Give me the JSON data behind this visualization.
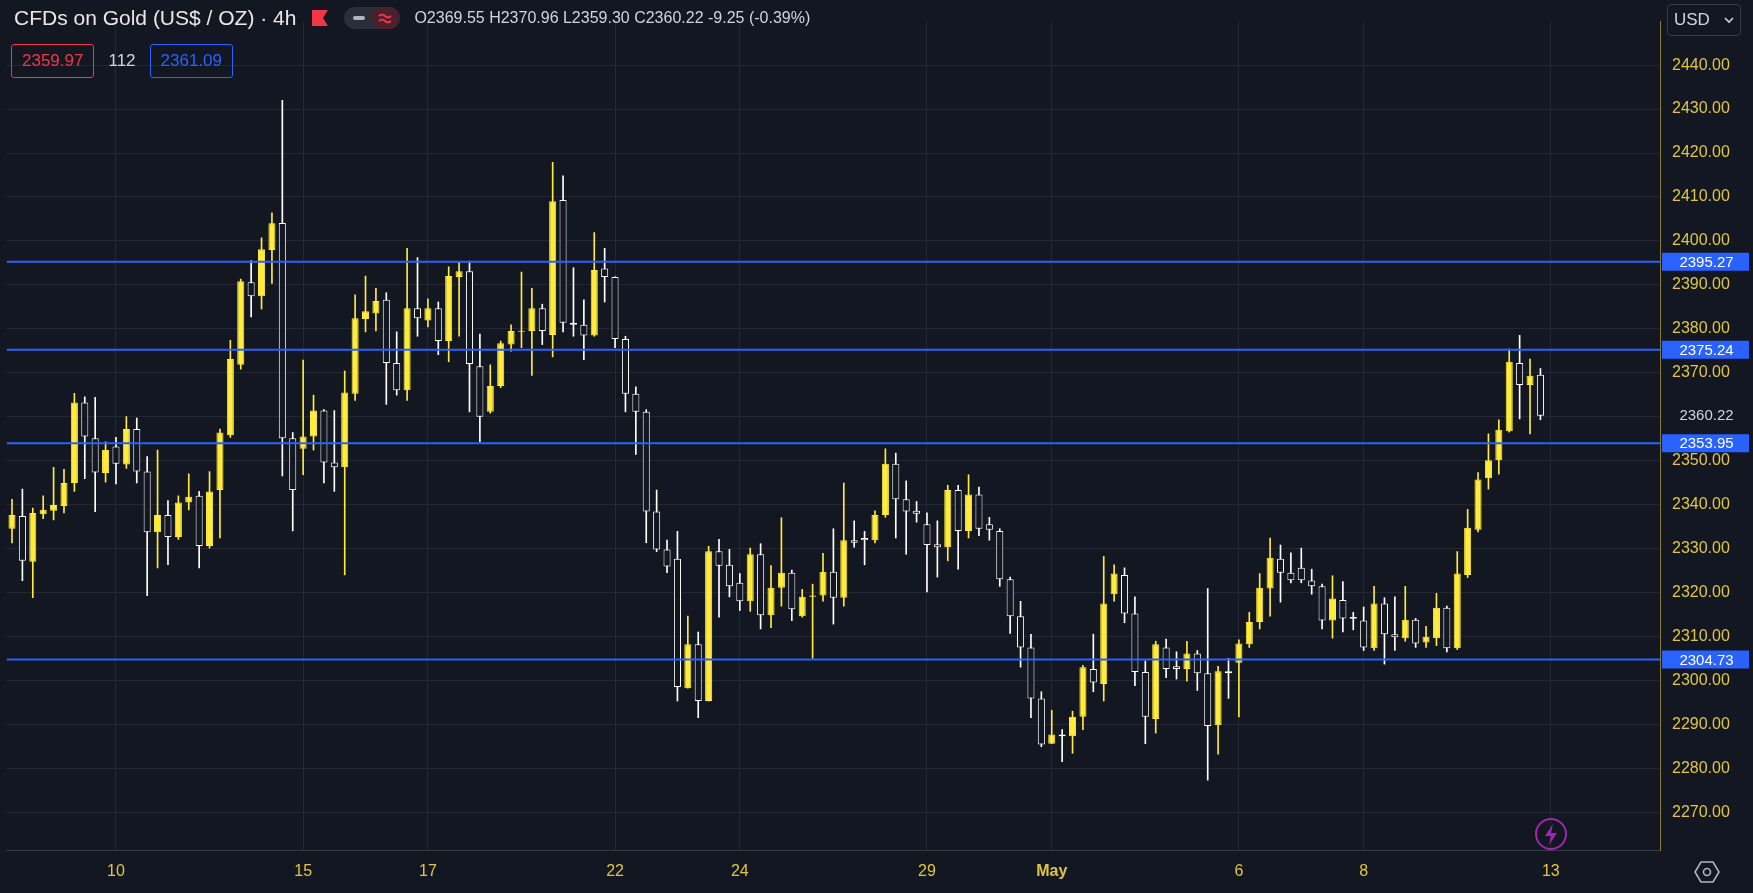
{
  "chart_data": {
    "type": "candlestick",
    "title": "CFDs on Gold (US$ / OZ) · 4h",
    "subtitle": "O2369.55 H2370.96 L2359.30 C2360.22 -9.25 (-0.39%)",
    "categories": [
      null,
      null,
      null,
      null,
      null,
      null,
      null,
      null,
      null,
      null,
      "10",
      null,
      null,
      null,
      null,
      null,
      null,
      null,
      null,
      null,
      null,
      null,
      null,
      null,
      null,
      null,
      null,
      null,
      "15",
      null,
      null,
      null,
      null,
      null,
      null,
      null,
      null,
      null,
      null,
      null,
      "17",
      null,
      null,
      null,
      null,
      null,
      null,
      null,
      null,
      null,
      null,
      null,
      null,
      null,
      null,
      null,
      null,
      null,
      "22",
      null,
      null,
      null,
      null,
      null,
      null,
      null,
      null,
      null,
      null,
      null,
      "24",
      null,
      null,
      null,
      null,
      null,
      null,
      null,
      null,
      null,
      null,
      null,
      null,
      null,
      null,
      null,
      null,
      null,
      "29",
      null,
      null,
      null,
      null,
      null,
      null,
      null,
      null,
      null,
      null,
      null,
      "May",
      null,
      null,
      null,
      null,
      null,
      null,
      null,
      null,
      null,
      null,
      null,
      null,
      null,
      null,
      null,
      null,
      null,
      "6",
      null,
      null,
      null,
      null,
      null,
      null,
      null,
      null,
      null,
      null,
      null,
      "8",
      null,
      null,
      null,
      null,
      null,
      null,
      null,
      null,
      null,
      null,
      null,
      null,
      null,
      null,
      null,
      null,
      null,
      "13",
      null,
      null,
      null,
      null,
      null,
      null,
      null,
      null,
      null,
      null
    ],
    "ohlc": [
      [
        2334.5,
        2341.2,
        2331.3,
        2337.6
      ],
      [
        2337.4,
        2343.5,
        2322.7,
        2327.2
      ],
      [
        2327.0,
        2339.2,
        2318.8,
        2338.1
      ],
      [
        2337.8,
        2342.0,
        2336.8,
        2338.8
      ],
      [
        2338.6,
        2348.5,
        2336.5,
        2339.9
      ],
      [
        2339.7,
        2348.0,
        2338.1,
        2344.9
      ],
      [
        2344.9,
        2365.3,
        2343.0,
        2363.2
      ],
      [
        2363.2,
        2364.5,
        2345.9,
        2355.5
      ],
      [
        2355.1,
        2364.4,
        2338.4,
        2347.3
      ],
      [
        2347.2,
        2354.3,
        2345.1,
        2352.4
      ],
      [
        2353.2,
        2355.3,
        2344.7,
        2349.3
      ],
      [
        2349.1,
        2360.0,
        2348.2,
        2357.2
      ],
      [
        2357.2,
        2359.7,
        2344.9,
        2347.5
      ],
      [
        2347.5,
        2350.9,
        2319.3,
        2333.7
      ],
      [
        2333.7,
        2352.4,
        2325.6,
        2337.6
      ],
      [
        2337.6,
        2340.9,
        2326.3,
        2332.6
      ],
      [
        2332.6,
        2342.0,
        2332.1,
        2340.5
      ],
      [
        2340.5,
        2347.0,
        2338.8,
        2341.8
      ],
      [
        2342.0,
        2343.0,
        2325.6,
        2330.6
      ],
      [
        2330.6,
        2347.5,
        2330.1,
        2343.0
      ],
      [
        2343.3,
        2357.2,
        2332.4,
        2356.4
      ],
      [
        2355.8,
        2377.4,
        2355.3,
        2373.1
      ],
      [
        2371.8,
        2391.3,
        2370.8,
        2390.8
      ],
      [
        2390.6,
        2395.5,
        2382.7,
        2387.4
      ],
      [
        2387.4,
        2400.7,
        2384.5,
        2398.1
      ],
      [
        2397.9,
        2406.4,
        2390.3,
        2404.0
      ],
      [
        2404.1,
        2432.0,
        2346.5,
        2355.1
      ],
      [
        2355.1,
        2356.4,
        2334.0,
        2343.3
      ],
      [
        2352.7,
        2372.9,
        2346.8,
        2355.5
      ],
      [
        2355.5,
        2364.9,
        2352.4,
        2361.4
      ],
      [
        2361.4,
        2361.6,
        2344.9,
        2349.6
      ],
      [
        2349.6,
        2361.4,
        2343.0,
        2348.5
      ],
      [
        2348.5,
        2370.4,
        2324.0,
        2365.5
      ],
      [
        2365.2,
        2387.7,
        2363.7,
        2382.4
      ],
      [
        2382.2,
        2392.0,
        2379.3,
        2384.0
      ],
      [
        2383.5,
        2389.2,
        2379.5,
        2386.3
      ],
      [
        2386.6,
        2388.2,
        2362.8,
        2372.2
      ],
      [
        2372.2,
        2379.3,
        2364.9,
        2366.0
      ],
      [
        2366.0,
        2398.3,
        2363.7,
        2384.7
      ],
      [
        2384.7,
        2396.2,
        2378.3,
        2382.4
      ],
      [
        2381.9,
        2386.8,
        2380.4,
        2384.7
      ],
      [
        2384.7,
        2386.1,
        2374.1,
        2377.2
      ],
      [
        2377.2,
        2394.1,
        2372.5,
        2392.0
      ],
      [
        2391.8,
        2395.2,
        2378.3,
        2393.1
      ],
      [
        2393.1,
        2395.4,
        2361.1,
        2372.0
      ],
      [
        2371.5,
        2378.8,
        2354.3,
        2360.0
      ],
      [
        2361.1,
        2371.8,
        2360.8,
        2367.0
      ],
      [
        2367.0,
        2377.2,
        2366.6,
        2376.7
      ],
      [
        2376.4,
        2380.9,
        2374.9,
        2379.5
      ],
      [
        2379.3,
        2392.9,
        2375.7,
        2379.5
      ],
      [
        2379.5,
        2389.2,
        2369.4,
        2384.7
      ],
      [
        2384.7,
        2385.6,
        2376.4,
        2379.5
      ],
      [
        2378.6,
        2417.9,
        2373.6,
        2409.0
      ],
      [
        2409.3,
        2414.8,
        2379.3,
        2381.4
      ],
      [
        2381.4,
        2393.9,
        2378.3,
        2380.9
      ],
      [
        2380.9,
        2386.6,
        2373.0,
        2378.5
      ],
      [
        2378.5,
        2401.9,
        2378.3,
        2393.4
      ],
      [
        2393.7,
        2398.3,
        2386.1,
        2391.8
      ],
      [
        2391.8,
        2391.8,
        2375.7,
        2377.7
      ],
      [
        2377.7,
        2378.3,
        2361.1,
        2365.2
      ],
      [
        2365.2,
        2366.8,
        2351.4,
        2361.1
      ],
      [
        2361.1,
        2361.6,
        2331.3,
        2338.4
      ],
      [
        2338.4,
        2343.3,
        2329.3,
        2329.8
      ],
      [
        2329.8,
        2331.9,
        2324.5,
        2325.9
      ],
      [
        2327.7,
        2333.9,
        2295.3,
        2298.5
      ],
      [
        2298.2,
        2314.6,
        2298.2,
        2308.2
      ],
      [
        2308.2,
        2311.0,
        2291.5,
        2295.3
      ],
      [
        2295.3,
        2330.5,
        2295.3,
        2329.4
      ],
      [
        2329.4,
        2332.1,
        2314.4,
        2326.1
      ],
      [
        2326.3,
        2329.8,
        2319.0,
        2321.4
      ],
      [
        2322.2,
        2324.3,
        2315.9,
        2318.0
      ],
      [
        2318.0,
        2330.1,
        2315.7,
        2328.7
      ],
      [
        2328.7,
        2331.1,
        2311.7,
        2314.8
      ],
      [
        2314.8,
        2326.1,
        2312.0,
        2321.1
      ],
      [
        2321.1,
        2337.0,
        2316.9,
        2324.5
      ],
      [
        2324.5,
        2325.1,
        2313.6,
        2316.2
      ],
      [
        2314.6,
        2320.7,
        2314.4,
        2319.0
      ],
      [
        2319.0,
        2321.9,
        2305.0,
        2319.3
      ],
      [
        2319.3,
        2328.9,
        2318.0,
        2324.7
      ],
      [
        2324.7,
        2334.5,
        2312.8,
        2318.8
      ],
      [
        2318.8,
        2344.9,
        2316.9,
        2331.9
      ],
      [
        2331.9,
        2336.3,
        2330.3,
        2331.3
      ],
      [
        2332.4,
        2333.9,
        2326.3,
        2331.9
      ],
      [
        2331.9,
        2338.6,
        2331.3,
        2337.6
      ],
      [
        2337.6,
        2352.7,
        2337.1,
        2349.3
      ],
      [
        2349.3,
        2351.7,
        2332.4,
        2341.2
      ],
      [
        2341.2,
        2345.4,
        2328.7,
        2338.4
      ],
      [
        2338.6,
        2340.7,
        2336.0,
        2337.9
      ],
      [
        2335.5,
        2338.1,
        2320.1,
        2330.8
      ],
      [
        2331.0,
        2336.3,
        2323.5,
        2330.3
      ],
      [
        2330.3,
        2344.4,
        2327.2,
        2343.3
      ],
      [
        2343.3,
        2344.4,
        2325.3,
        2334.0
      ],
      [
        2334.0,
        2346.8,
        2332.4,
        2342.3
      ],
      [
        2342.3,
        2344.0,
        2332.9,
        2334.5
      ],
      [
        2335.5,
        2337.1,
        2331.9,
        2334.3
      ],
      [
        2334.0,
        2334.5,
        2321.4,
        2323.0
      ],
      [
        2323.0,
        2323.5,
        2310.7,
        2314.6
      ],
      [
        2314.6,
        2318.0,
        2303.0,
        2307.5
      ],
      [
        2307.5,
        2310.5,
        2291.5,
        2295.9
      ],
      [
        2295.9,
        2297.4,
        2284.9,
        2285.4
      ],
      [
        2285.6,
        2293.2,
        2285.6,
        2287.7
      ],
      [
        2287.7,
        2288.8,
        2281.5,
        2287.3
      ],
      [
        2287.3,
        2293.0,
        2283.4,
        2291.7
      ],
      [
        2291.7,
        2303.4,
        2288.8,
        2303.0
      ],
      [
        2302.6,
        2310.5,
        2297.4,
        2299.5
      ],
      [
        2299.2,
        2328.2,
        2295.3,
        2317.5
      ],
      [
        2319.6,
        2326.3,
        2318.0,
        2324.3
      ],
      [
        2324.0,
        2325.6,
        2313.1,
        2315.2
      ],
      [
        2315.2,
        2319.0,
        2298.8,
        2301.9
      ],
      [
        2301.9,
        2304.4,
        2285.6,
        2291.7
      ],
      [
        2291.2,
        2308.9,
        2288.0,
        2308.2
      ],
      [
        2307.5,
        2309.4,
        2300.6,
        2302.6
      ],
      [
        2303.2,
        2306.5,
        2300.3,
        2302.6
      ],
      [
        2302.6,
        2308.9,
        2299.8,
        2306.1
      ],
      [
        2306.1,
        2306.8,
        2297.7,
        2301.6
      ],
      [
        2301.6,
        2320.9,
        2277.3,
        2289.6
      ],
      [
        2289.8,
        2303.2,
        2283.2,
        2302.1
      ],
      [
        2302.1,
        2305.0,
        2295.9,
        2301.6
      ],
      [
        2304.0,
        2309.2,
        2291.7,
        2308.4
      ],
      [
        2308.2,
        2315.5,
        2307.5,
        2313.3
      ],
      [
        2313.3,
        2324.3,
        2311.7,
        2321.1
      ],
      [
        2320.9,
        2332.4,
        2314.6,
        2327.9
      ],
      [
        2327.7,
        2330.8,
        2317.8,
        2324.5
      ],
      [
        2324.5,
        2329.0,
        2322.2,
        2322.8
      ],
      [
        2325.6,
        2330.1,
        2322.2,
        2322.8
      ],
      [
        2322.7,
        2325.3,
        2319.6,
        2321.4
      ],
      [
        2321.4,
        2321.9,
        2311.7,
        2313.6
      ],
      [
        2313.6,
        2323.8,
        2309.6,
        2318.6
      ],
      [
        2318.3,
        2322.5,
        2311.0,
        2314.1
      ],
      [
        2314.4,
        2315.5,
        2311.5,
        2314.0
      ],
      [
        2313.6,
        2316.7,
        2306.8,
        2307.5
      ],
      [
        2307.3,
        2321.4,
        2306.8,
        2317.5
      ],
      [
        2317.5,
        2318.8,
        2303.7,
        2310.5
      ],
      [
        2310.5,
        2319.0,
        2306.8,
        2309.8
      ],
      [
        2309.6,
        2321.4,
        2308.9,
        2313.8
      ],
      [
        2313.8,
        2314.1,
        2307.5,
        2308.4
      ],
      [
        2308.6,
        2312.3,
        2307.5,
        2309.9
      ],
      [
        2309.6,
        2319.8,
        2307.9,
        2316.5
      ],
      [
        2316.5,
        2316.9,
        2306.5,
        2307.3
      ],
      [
        2307.3,
        2329.3,
        2307.0,
        2324.3
      ],
      [
        2324.0,
        2338.9,
        2323.4,
        2334.7
      ],
      [
        2334.3,
        2347.3,
        2333.8,
        2345.7
      ],
      [
        2346.0,
        2356.1,
        2343.5,
        2350.1
      ],
      [
        2350.1,
        2359.3,
        2346.9,
        2357.0
      ],
      [
        2356.7,
        2375.4,
        2356.5,
        2372.5
      ],
      [
        2372.2,
        2378.5,
        2359.5,
        2367.2
      ],
      [
        2367.2,
        2373.1,
        2356.1,
        2369.3
      ],
      [
        2369.55,
        2370.96,
        2359.3,
        2360.22
      ],
      null,
      null,
      null,
      null,
      null,
      null,
      null,
      null,
      null,
      null,
      null
    ],
    "colors": [
      "#ffeb3b",
      "#ffffff",
      "#ffeb3b",
      "#ffeb3b",
      "#ffeb3b",
      "#ffeb3b",
      "#ffeb3b",
      "#ffffff",
      "#ffffff",
      "#ffeb3b",
      "#ffffff",
      "#ffeb3b",
      "#ffffff",
      "#ffffff",
      "#ffeb3b",
      "#ffffff",
      "#ffeb3b",
      "#ffeb3b",
      "#ffffff",
      "#ffeb3b",
      "#ffeb3b",
      "#ffeb3b",
      "#ffeb3b",
      "#ffffff",
      "#ffeb3b",
      "#ffeb3b",
      "#ffffff",
      "#ffffff",
      "#ffeb3b",
      "#ffeb3b",
      "#ffffff",
      "#ffffff",
      "#ffeb3b",
      "#ffeb3b",
      "#ffeb3b",
      "#ffeb3b",
      "#ffffff",
      "#ffffff",
      "#ffeb3b",
      "#ffffff",
      "#ffeb3b",
      "#ffffff",
      "#ffeb3b",
      "#ffeb3b",
      "#ffffff",
      "#ffffff",
      "#ffeb3b",
      "#ffeb3b",
      "#ffeb3b",
      "#ffeb3b",
      "#ffeb3b",
      "#ffffff",
      "#ffeb3b",
      "#ffffff",
      "#ffffff",
      "#ffffff",
      "#ffeb3b",
      "#ffffff",
      "#ffffff",
      "#ffffff",
      "#ffffff",
      "#ffffff",
      "#ffffff",
      "#ffffff",
      "#ffffff",
      "#ffeb3b",
      "#ffffff",
      "#ffeb3b",
      "#ffffff",
      "#ffffff",
      "#ffffff",
      "#ffeb3b",
      "#ffffff",
      "#ffeb3b",
      "#ffeb3b",
      "#ffffff",
      "#ffeb3b",
      "#ffeb3b",
      "#ffeb3b",
      "#ffffff",
      "#ffeb3b",
      "#ffffff",
      "#ffffff",
      "#ffeb3b",
      "#ffeb3b",
      "#ffffff",
      "#ffffff",
      "#ffffff",
      "#ffffff",
      "#ffffff",
      "#ffeb3b",
      "#ffffff",
      "#ffeb3b",
      "#ffffff",
      "#ffffff",
      "#ffffff",
      "#ffffff",
      "#ffffff",
      "#ffffff",
      "#ffffff",
      "#ffeb3b",
      "#ffffff",
      "#ffeb3b",
      "#ffeb3b",
      "#ffffff",
      "#ffeb3b",
      "#ffeb3b",
      "#ffffff",
      "#ffffff",
      "#ffffff",
      "#ffeb3b",
      "#ffffff",
      "#ffffff",
      "#ffeb3b",
      "#ffffff",
      "#ffffff",
      "#ffeb3b",
      "#ffffff",
      "#ffeb3b",
      "#ffeb3b",
      "#ffeb3b",
      "#ffeb3b",
      "#ffffff",
      "#ffffff",
      "#ffffff",
      "#ffffff",
      "#ffffff",
      "#ffeb3b",
      "#ffffff",
      "#ffffff",
      "#ffffff",
      "#ffeb3b",
      "#ffffff",
      "#ffffff",
      "#ffeb3b",
      "#ffffff",
      "#ffeb3b",
      "#ffeb3b",
      "#ffffff",
      "#ffeb3b",
      "#ffeb3b",
      "#ffeb3b",
      "#ffeb3b",
      "#ffeb3b",
      "#ffeb3b",
      "#ffffff",
      "#ffeb3b",
      "#ffffff",
      null,
      null,
      null,
      null,
      null,
      null,
      null,
      null,
      null,
      null,
      null
    ],
    "ylim": [
      2261.4,
      2449.9
    ],
    "yticks": [
      {
        "value": 2270,
        "label": "2270.00"
      },
      {
        "value": 2280,
        "label": "2280.00"
      },
      {
        "value": 2290,
        "label": "2290.00"
      },
      {
        "value": 2300,
        "label": "2300.00"
      },
      {
        "value": 2310,
        "label": "2310.00"
      },
      {
        "value": 2320,
        "label": "2320.00"
      },
      {
        "value": 2330,
        "label": "2330.00"
      },
      {
        "value": 2340,
        "label": "2340.00"
      },
      {
        "value": 2350,
        "label": "2350.00"
      },
      {
        "value": 2360,
        "label": null
      },
      {
        "value": 2370,
        "label": "2370.00"
      },
      {
        "value": 2380,
        "label": "2380.00"
      },
      {
        "value": 2390,
        "label": "2390.00"
      },
      {
        "value": 2400,
        "label": "2400.00"
      },
      {
        "value": 2410,
        "label": "2410.00"
      },
      {
        "value": 2420,
        "label": "2420.00"
      },
      {
        "value": 2430,
        "label": "2430.00"
      },
      {
        "value": 2440,
        "label": "2440.00"
      }
    ],
    "grid": true,
    "ref_lines": [
      {
        "axis": "y",
        "value": 2395.27,
        "label": "2395.27",
        "color": "#2962ff"
      },
      {
        "axis": "y",
        "value": 2375.24,
        "label": "2375.24",
        "color": "#2962ff"
      },
      {
        "axis": "y",
        "value": 2353.95,
        "label": "2353.95",
        "color": "#2962ff"
      },
      {
        "axis": "y",
        "value": 2304.73,
        "label": "2304.73",
        "color": "#2962ff"
      }
    ],
    "annotations": [
      "2359.97",
      "112",
      "2361.09",
      "USD",
      "2360.22"
    ]
  }
}
